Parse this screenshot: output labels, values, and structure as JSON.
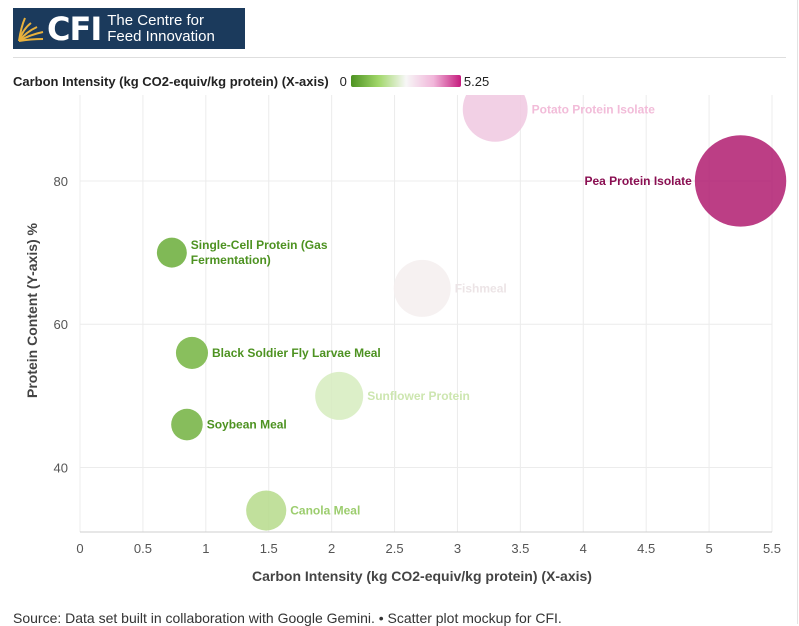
{
  "brand": {
    "abbr": "CFI",
    "name_line1": "The Centre for",
    "name_line2": "Feed Innovation",
    "logo_icon": "wheat-field-icon"
  },
  "legend": {
    "title": "Carbon Intensity (kg CO2-equiv/kg protein) (X-axis)",
    "min_label": "0",
    "max_label": "5.25",
    "colors": [
      "#4d9221",
      "#a1d76a",
      "#f7f7f7",
      "#f1b6da",
      "#c51b7d"
    ]
  },
  "chart_data": {
    "type": "scatter",
    "title": "",
    "xlabel": "Carbon Intensity (kg CO2-equiv/kg protein) (X-axis)",
    "ylabel": "Protein Content (Y-axis) %",
    "xlim": [
      0,
      5.5
    ],
    "ylim": [
      31,
      92
    ],
    "x_ticks": [
      "0",
      "0.5",
      "1",
      "1.5",
      "2",
      "2.5",
      "3",
      "3.5",
      "4",
      "4.5",
      "5",
      "5.5"
    ],
    "y_ticks": [
      "40",
      "60",
      "80"
    ],
    "grid": true,
    "color_scale": {
      "min": 0,
      "max": 5.25
    },
    "points": [
      {
        "label": "Potato Protein Isolate",
        "x": 3.3,
        "y": 90,
        "color": "#f0c8e0"
      },
      {
        "label": "Pea Protein Isolate",
        "x": 5.25,
        "y": 80,
        "color": "#b01c70"
      },
      {
        "label": "Single-Cell Protein (Gas Fermentation)",
        "x": 0.73,
        "y": 70,
        "color": "#6aad38"
      },
      {
        "label": "Fishmeal",
        "x": 2.72,
        "y": 65,
        "color": "#f5eeee"
      },
      {
        "label": "Black Soldier Fly Larvae Meal",
        "x": 0.89,
        "y": 56,
        "color": "#74b441"
      },
      {
        "label": "Sunflower Protein",
        "x": 2.06,
        "y": 50,
        "color": "#d6ecbe"
      },
      {
        "label": "Soybean Meal",
        "x": 0.85,
        "y": 46,
        "color": "#72b23f"
      },
      {
        "label": "Canola Meal",
        "x": 1.48,
        "y": 34,
        "color": "#b6db8b"
      }
    ],
    "label_colors": {
      "Potato Protein Isolate": "#f2bcd9",
      "Pea Protein Isolate": "#8a0f52",
      "Single-Cell Protein (Gas Fermentation)": "#4d9221",
      "Fishmeal": "#ece4e6",
      "Black Soldier Fly Larvae Meal": "#4d9221",
      "Sunflower Protein": "#cde6b0",
      "Soybean Meal": "#4d9221",
      "Canola Meal": "#9ccd6e"
    }
  },
  "footer": {
    "source": "Source: Data set built in collaboration with Google Gemini. • Scatter plot mockup for CFI."
  }
}
